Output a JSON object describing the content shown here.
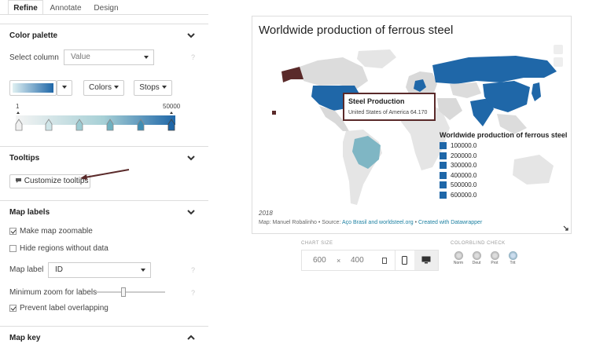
{
  "tabs": [
    {
      "label": "Refine",
      "active": true
    },
    {
      "label": "Annotate",
      "active": false
    },
    {
      "label": "Design",
      "active": false
    }
  ],
  "color_palette": {
    "title": "Color palette",
    "select_column_label": "Select column",
    "select_column_value": "Value",
    "colors_button": "Colors",
    "stops_button": "Stops",
    "range_min": "1",
    "range_max": "50000",
    "help": "?"
  },
  "tooltips": {
    "title": "Tooltips",
    "customize_button": "Customize tooltips"
  },
  "map_labels": {
    "title": "Map labels",
    "make_zoomable": {
      "label": "Make map zoomable",
      "checked": true
    },
    "hide_regions": {
      "label": "Hide regions without data",
      "checked": false
    },
    "map_label_label": "Map label",
    "map_label_value": "ID",
    "min_zoom_label": "Minimum zoom for labels",
    "min_zoom_level": 0.4,
    "prevent_overlap": {
      "label": "Prevent label overlapping",
      "checked": true
    },
    "help": "?"
  },
  "map_key": {
    "title": "Map key"
  },
  "preview": {
    "title": "Worldwide production of ferrous steel",
    "tooltip_title": "Steel Production",
    "tooltip_body": "United States of America 64.170",
    "legend_title": "Worldwide production of ferrous steel",
    "legend": [
      "100000.0",
      "200000.0",
      "300000.0",
      "400000.0",
      "500000.0",
      "600000.0"
    ],
    "year": "2018",
    "credits_prefix": "Map: Manuel Robalinho • Source: ",
    "credits_source": "Aço Brasil and worldsteel.org",
    "credits_sep": " • ",
    "credits_created": "Created with Datawrapper",
    "colors": {
      "dark": "#1f67a8",
      "mid": "#7fb6c4",
      "light": "#d9d9d9",
      "land": "#e5e5e5"
    }
  },
  "chart_size": {
    "caption": "CHART SIZE",
    "width": "600",
    "times": "×",
    "height": "400"
  },
  "colorblind": {
    "caption": "COLORBLIND CHECK",
    "options": [
      "Norm",
      "Deut",
      "Prot",
      "Trit"
    ]
  }
}
